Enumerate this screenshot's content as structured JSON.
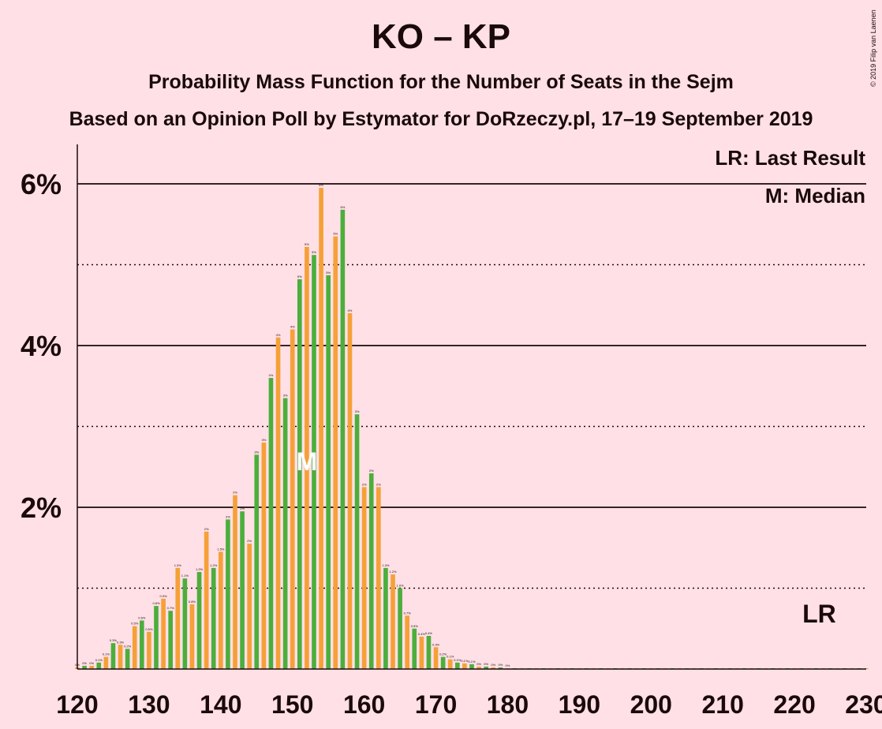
{
  "chart_data": {
    "type": "bar",
    "title": "KO – KP",
    "subtitle": "Probability Mass Function for the Number of Seats in the Sejm",
    "subtitle2": "Based on an Opinion Poll by Estymator for DoRzeczy.pl, 17–19 September 2019",
    "copyright": "© 2019 Filip van Laenen",
    "x_ticks": [
      "120",
      "130",
      "140",
      "150",
      "160",
      "170",
      "180",
      "190",
      "200",
      "210",
      "220",
      "230"
    ],
    "y_ticks": [
      "2%",
      "4%",
      "6%"
    ],
    "xlim": [
      120,
      230
    ],
    "ylim": [
      0,
      6.5
    ],
    "legend": {
      "last_result": "LR: Last Result",
      "median": "M: Median"
    },
    "lr_text": "LR",
    "median_text": "M",
    "median_seat": 152,
    "last_result_seat": 224,
    "colors": {
      "green": "#4cae3c",
      "orange": "#f5a038",
      "background": "#ffe0e6"
    },
    "x": [
      120,
      121,
      122,
      123,
      124,
      125,
      126,
      127,
      128,
      129,
      130,
      131,
      132,
      133,
      134,
      135,
      136,
      137,
      138,
      139,
      140,
      141,
      142,
      143,
      144,
      145,
      146,
      147,
      148,
      149,
      150,
      151,
      152,
      153,
      154,
      155,
      156,
      157,
      158,
      159,
      160,
      161,
      162,
      163,
      164,
      165,
      166,
      167,
      168,
      169,
      170,
      171,
      172,
      173,
      174,
      175,
      176,
      177,
      178,
      179,
      180,
      181,
      182,
      183,
      184,
      185,
      186,
      187,
      188,
      189,
      190,
      191,
      192,
      193,
      194,
      195,
      196,
      197,
      198,
      199,
      200,
      201,
      202,
      203,
      204,
      205,
      206,
      207,
      208,
      209,
      210,
      211,
      212,
      213,
      214,
      215,
      216,
      217,
      218,
      219,
      220,
      221,
      222,
      223,
      224,
      225,
      226,
      227,
      228,
      229,
      230
    ],
    "values": [
      0.02,
      0.04,
      0.04,
      0.08,
      0.15,
      0.32,
      0.3,
      0.25,
      0.53,
      0.6,
      0.46,
      0.78,
      0.87,
      0.72,
      1.25,
      1.12,
      0.8,
      1.2,
      1.7,
      1.25,
      1.45,
      1.85,
      2.15,
      1.95,
      1.55,
      2.65,
      2.8,
      3.6,
      4.1,
      3.35,
      4.2,
      4.82,
      5.22,
      5.12,
      5.95,
      4.87,
      5.35,
      5.68,
      4.4,
      3.15,
      2.25,
      2.42,
      2.25,
      1.25,
      1.17,
      1.0,
      0.66,
      0.5,
      0.4,
      0.41,
      0.27,
      0.15,
      0.12,
      0.08,
      0.07,
      0.06,
      0.03,
      0.03,
      0.02,
      0.02,
      0.01,
      0.01,
      0.01,
      0.01,
      0.01,
      0.01,
      0.01,
      0.01,
      0.01,
      0.01,
      0.01,
      0.01,
      0.01,
      0.01,
      0.01,
      0.01,
      0.01,
      0.01,
      0.01,
      0.01,
      0.01,
      0.01,
      0.01,
      0.01,
      0.01,
      0.01,
      0.01,
      0.01,
      0.01,
      0.01,
      0.01,
      0.01,
      0.01,
      0.01,
      0.01,
      0.01,
      0.01,
      0.01,
      0.01,
      0.01,
      0.01,
      0.01,
      0.01,
      0.01,
      0.01,
      0.01,
      0.01,
      0.01,
      0.01,
      0.01,
      0.01
    ],
    "labels": [
      "0%",
      "0%",
      "0%",
      "0.1%",
      "0.1%",
      "0.3%",
      "0.3%",
      "0.2%",
      "0.5%",
      "0.6%",
      "0.5%",
      "0.8%",
      "0.9%",
      "0.7%",
      "1.3%",
      "1.1%",
      "0.8%",
      "1.2%",
      "2%",
      "1.2%",
      "1.5%",
      "2%",
      "2%",
      "2%",
      "2%",
      "3%",
      "3%",
      "4%",
      "4%",
      "3%",
      "4%",
      "5%",
      "5%",
      "5%",
      "6%",
      "5%",
      "5%",
      "6%",
      "4%",
      "3%",
      "2%",
      "2%",
      "2%",
      "1.3%",
      "1.2%",
      "1.0%",
      "0.7%",
      "0.5%",
      "0.4%",
      "0.4%",
      "0.3%",
      "0.2%",
      "0.1%",
      "0.1%",
      "0.1%",
      "0.1%",
      "0%",
      "0%",
      "0%",
      "0%",
      "0%",
      "0%",
      "0%",
      "0%",
      "0%",
      "0%",
      "0%",
      "0%",
      "0%",
      "0%",
      "0%",
      "0%",
      "0%",
      "0%",
      "0%",
      "0%",
      "0%",
      "0%",
      "0%",
      "0%",
      "0%",
      "0%",
      "0%",
      "0%",
      "0%",
      "0%",
      "0%",
      "0%",
      "0%",
      "0%",
      "0%",
      "0%",
      "0%",
      "0%",
      "0%",
      "0%",
      "0%",
      "0%",
      "0%",
      "0%",
      "0%",
      "0%",
      "0%",
      "0%",
      "0%",
      "0%",
      "0%",
      "0%",
      "0%",
      "0%",
      "0%"
    ]
  }
}
